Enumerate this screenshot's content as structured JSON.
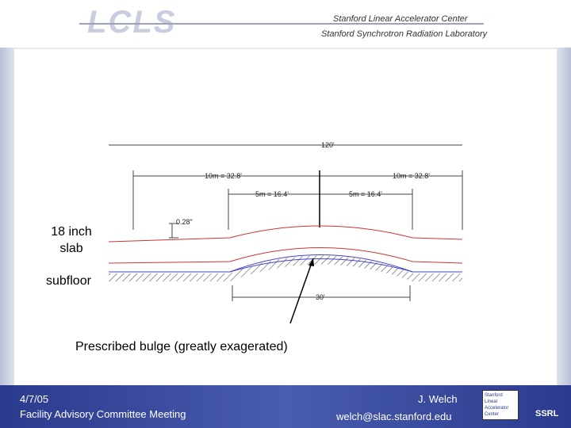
{
  "header": {
    "logo": "LCLS",
    "org_1": "Stanford Linear Accelerator Center",
    "org_2": "Stanford Synchrotron Radiation Laboratory"
  },
  "diagram": {
    "total_length": "120'",
    "left_10m": "10m = 32.8'",
    "right_10m": "10m = 32.8'",
    "left_5m": "5m = 16.4'",
    "right_5m": "5m = 16.4'",
    "bulge_height": "0.28\"",
    "bulge_base": "30'"
  },
  "labels": {
    "slab": "18 inch slab",
    "subfloor": "subfloor",
    "caption": "Prescribed bulge (greatly exagerated)"
  },
  "footer": {
    "date": "4/7/05",
    "meeting": "Facility Advisory Committee Meeting",
    "author": "J. Welch",
    "email": "welch@slac.stanford.edu",
    "logo_text": "Stanford Linear Accelerator Center",
    "logo_ssrl": "SSRL"
  }
}
